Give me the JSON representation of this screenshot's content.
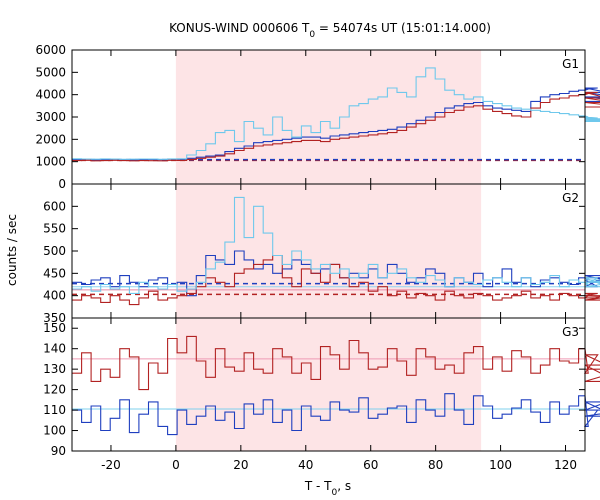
{
  "chart_data": {
    "type": "line",
    "title": "KONUS-WIND 000606 T",
    "title_sub": "0",
    "title_rest": " = 54074s UT (15:01:14.000)",
    "xlabel": "T - T",
    "xlabel_sub": "0",
    "xlabel_rest": ", s",
    "ylabel": "counts / sec",
    "xlim": [
      -32,
      126
    ],
    "xticks": [
      -20,
      0,
      20,
      40,
      60,
      80,
      100,
      120
    ],
    "shaded_interval": [
      0,
      94
    ],
    "shade_color": "#fde4e6",
    "panels": [
      {
        "name": "G1",
        "ylim": [
          0,
          6000
        ],
        "yticks": [
          0,
          1000,
          2000,
          3000,
          4000,
          5000,
          6000
        ],
        "step": 2.944,
        "x0": -32,
        "series": [
          {
            "name": "blue",
            "color": "#1f3fbf",
            "values": [
              1090,
              1110,
              1080,
              1095,
              1105,
              1090,
              1080,
              1100,
              1095,
              1090,
              1110,
              1105,
              1150,
              1200,
              1250,
              1300,
              1450,
              1600,
              1700,
              1850,
              1900,
              1950,
              2000,
              2050,
              2100,
              2100,
              2050,
              2150,
              2200,
              2250,
              2300,
              2350,
              2400,
              2450,
              2550,
              2700,
              2850,
              3000,
              3200,
              3400,
              3500,
              3600,
              3650,
              3500,
              3400,
              3350,
              3300,
              3250,
              3700,
              3900,
              4000,
              4050,
              4150,
              4200,
              4250,
              4300,
              4100,
              3900,
              3700
            ]
          },
          {
            "name": "red",
            "color": "#b22222",
            "values": [
              1050,
              1060,
              1040,
              1050,
              1060,
              1050,
              1040,
              1050,
              1045,
              1040,
              1060,
              1055,
              1100,
              1150,
              1200,
              1250,
              1350,
              1500,
              1600,
              1700,
              1750,
              1800,
              1850,
              1900,
              1950,
              1950,
              1900,
              2000,
              2050,
              2100,
              2150,
              2200,
              2250,
              2300,
              2400,
              2550,
              2700,
              2850,
              3000,
              3200,
              3300,
              3450,
              3500,
              3350,
              3250,
              3150,
              3050,
              3000,
              3400,
              3650,
              3800,
              3850,
              3950,
              4000,
              4050,
              4100,
              3850,
              3650,
              3450
            ]
          },
          {
            "name": "cyan",
            "color": "#6fc8ec",
            "values": [
              1130,
              1120,
              1110,
              1125,
              1115,
              1105,
              1110,
              1120,
              1115,
              1105,
              1125,
              1130,
              1300,
              1500,
              1800,
              2300,
              2400,
              1900,
              2800,
              2500,
              2200,
              3000,
              2400,
              2100,
              2600,
              2300,
              2800,
              2500,
              3000,
              3500,
              3600,
              3800,
              3900,
              4300,
              4100,
              3900,
              4800,
              5200,
              4700,
              4200,
              4000,
              3800,
              3900,
              3700,
              3600,
              3500,
              3400,
              3350,
              3300,
              3250,
              3200,
              3150,
              3100,
              3050,
              3000,
              2950,
              2900,
              2850,
              2800
            ]
          }
        ],
        "reference_lines": [
          {
            "name": "red-dash",
            "value": 1060,
            "color": "#b22222",
            "dashed": true
          },
          {
            "name": "blue-dash",
            "value": 1090,
            "color": "#1f3fbf",
            "dashed": true
          }
        ]
      },
      {
        "name": "G2",
        "ylim": [
          350,
          650
        ],
        "yticks": [
          350,
          400,
          450,
          500,
          550,
          600
        ],
        "step": 2.944,
        "x0": -32,
        "series": [
          {
            "name": "blue",
            "color": "#1f3fbf",
            "values": [
              430,
              425,
              435,
              440,
              420,
              445,
              430,
              420,
              435,
              440,
              425,
              430,
              400,
              445,
              490,
              480,
              470,
              500,
              480,
              460,
              470,
              450,
              460,
              480,
              470,
              450,
              460,
              470,
              440,
              450,
              440,
              460,
              440,
              470,
              450,
              430,
              440,
              460,
              450,
              420,
              440,
              430,
              450,
              420,
              440,
              460,
              430,
              440,
              420,
              435,
              440,
              430,
              425,
              440,
              435,
              420,
              445,
              430,
              440
            ]
          },
          {
            "name": "red",
            "color": "#b22222",
            "values": [
              390,
              400,
              395,
              385,
              400,
              390,
              380,
              395,
              410,
              390,
              395,
              400,
              405,
              420,
              440,
              430,
              420,
              450,
              460,
              470,
              480,
              490,
              440,
              420,
              460,
              450,
              430,
              470,
              440,
              420,
              430,
              410,
              420,
              400,
              410,
              395,
              405,
              400,
              390,
              410,
              400,
              395,
              405,
              400,
              390,
              395,
              400,
              410,
              395,
              400,
              390,
              405,
              400,
              395,
              400,
              405,
              390,
              400,
              395
            ]
          },
          {
            "name": "cyan",
            "color": "#6fc8ec",
            "values": [
              415,
              420,
              410,
              425,
              415,
              420,
              405,
              430,
              420,
              415,
              425,
              410,
              415,
              430,
              460,
              475,
              520,
              620,
              530,
              600,
              540,
              490,
              470,
              500,
              480,
              460,
              470,
              450,
              460,
              440,
              450,
              470,
              440,
              450,
              460,
              440,
              430,
              445,
              435,
              420,
              440,
              430,
              425,
              435,
              440,
              430,
              420,
              440,
              425,
              430,
              445,
              420,
              435,
              430,
              425,
              440,
              420,
              430,
              435
            ]
          }
        ],
        "reference_lines": [
          {
            "name": "red-dash",
            "value": 403,
            "color": "#b22222",
            "dashed": true
          },
          {
            "name": "blue-dash",
            "value": 427,
            "color": "#1f3fbf",
            "dashed": true
          },
          {
            "name": "pink-solid",
            "value": 413,
            "color": "#e88aa8",
            "dashed": false
          },
          {
            "name": "lightblue-solid",
            "value": 420,
            "color": "#8fd3f0",
            "dashed": false
          }
        ]
      },
      {
        "name": "G3",
        "ylim": [
          90,
          155
        ],
        "yticks": [
          90,
          100,
          110,
          120,
          130,
          140,
          150
        ],
        "step": 2.944,
        "x0": -32,
        "series": [
          {
            "name": "red",
            "color": "#b22222",
            "values": [
              128,
              138,
              124,
              130,
              126,
              140,
              136,
              120,
              133,
              128,
              145,
              138,
              146,
              134,
              126,
              140,
              131,
              129,
              138,
              130,
              128,
              140,
              136,
              128,
              133,
              125,
              141,
              137,
              130,
              144,
              138,
              130,
              131,
              140,
              134,
              127,
              140,
              136,
              130,
              132,
              128,
              138,
              141,
              130,
              136,
              129,
              139,
              136,
              128,
              132,
              140,
              134,
              133,
              140,
              128,
              137,
              132,
              124,
              130
            ]
          },
          {
            "name": "blue",
            "color": "#1f3fbf",
            "values": [
              110,
              104,
              112,
              100,
              106,
              115,
              99,
              108,
              114,
              102,
              98,
              110,
              103,
              107,
              112,
              105,
              109,
              101,
              113,
              108,
              115,
              104,
              110,
              100,
              112,
              107,
              105,
              114,
              110,
              109,
              116,
              106,
              108,
              111,
              112,
              104,
              115,
              110,
              107,
              118,
              110,
              103,
              117,
              112,
              106,
              108,
              111,
              115,
              109,
              104,
              114,
              108,
              112,
              117,
              102,
              110,
              114,
              107,
              110
            ]
          }
        ],
        "reference_lines": [
          {
            "name": "pink-solid",
            "value": 135,
            "color": "#ef9ab5",
            "dashed": false
          },
          {
            "name": "lightblue-solid",
            "value": 110.5,
            "color": "#7fd0ee",
            "dashed": false
          }
        ]
      }
    ]
  }
}
